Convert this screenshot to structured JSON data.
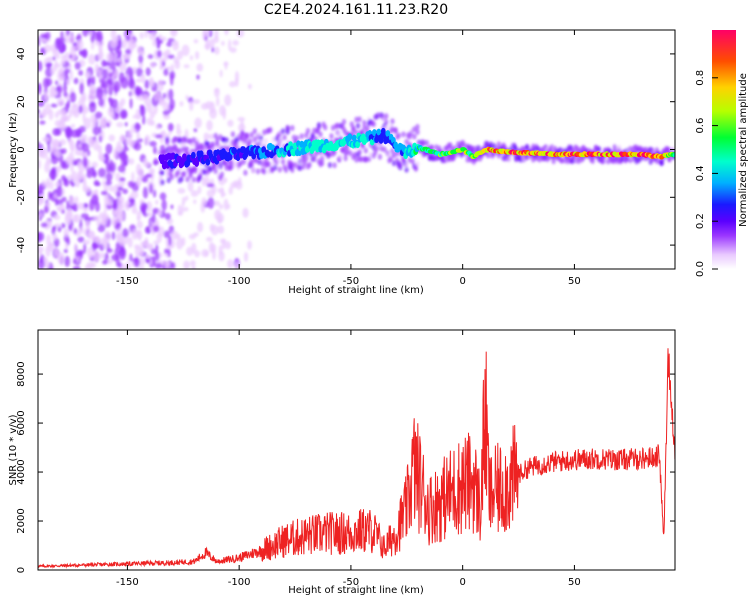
{
  "title": "C2E4.2024.161.11.23.R20",
  "colors": {
    "snr_line": "#ee2222",
    "colorbar": [
      "#ffffff",
      "#e9c9ff",
      "#9a36ff",
      "#5a00ff",
      "#1a1aff",
      "#00b0ff",
      "#00ffcc",
      "#00ff33",
      "#b6ff00",
      "#ffd200",
      "#ff4d00",
      "#ff0066"
    ]
  },
  "chart_data": [
    {
      "type": "heatmap",
      "xlabel": "Height of straight line (km)",
      "ylabel": "Frequency (Hz)",
      "xlim": [
        -190,
        95
      ],
      "ylim": [
        -50,
        50
      ],
      "xticks": [
        -150,
        -100,
        -50,
        0,
        50
      ],
      "yticks": [
        -40,
        -20,
        0,
        20,
        40
      ],
      "colorbar": {
        "label": "Normalized spectral amplitude",
        "range": [
          0,
          1
        ],
        "ticks": [
          "0.0",
          "0.2",
          "0.4",
          "0.6",
          "0.8"
        ]
      },
      "ridge": {
        "description_values_only": true,
        "x": [
          -135,
          -120,
          -100,
          -80,
          -60,
          -45,
          -35,
          -25,
          -20,
          -10,
          0,
          5,
          10,
          20,
          40,
          60,
          80,
          88,
          95
        ],
        "y": [
          -5,
          -4,
          -2,
          0,
          2,
          4,
          6,
          -2,
          1,
          -2,
          0,
          -3,
          0,
          -1,
          -2,
          -2,
          -2,
          -3,
          -2
        ],
        "amplitude": [
          0.25,
          0.3,
          0.35,
          0.45,
          0.5,
          0.5,
          0.35,
          0.45,
          0.55,
          0.6,
          0.7,
          0.65,
          0.85,
          0.9,
          0.9,
          0.9,
          0.88,
          0.9,
          0.6
        ]
      }
    },
    {
      "type": "line",
      "xlabel": "Height of straight line (km)",
      "ylabel": "SNR (10 * v/v)",
      "xlim": [
        -190,
        95
      ],
      "ylim": [
        0,
        9800
      ],
      "xticks": [
        -150,
        -100,
        -50,
        0,
        50
      ],
      "yticks": [
        0,
        2000,
        4000,
        6000,
        8000
      ],
      "series": [
        {
          "x": [
            -190,
            -170,
            -150,
            -130,
            -120,
            -115,
            -110,
            -100,
            -90,
            -80,
            -70,
            -60,
            -50,
            -45,
            -40,
            -35,
            -30,
            -25,
            -22,
            -20,
            -15,
            -10,
            -5,
            0,
            5,
            8,
            10,
            12,
            15,
            20,
            25,
            30,
            40,
            50,
            60,
            70,
            80,
            85,
            88,
            90,
            92,
            95
          ],
          "y": [
            150,
            200,
            250,
            300,
            350,
            700,
            350,
            500,
            800,
            1200,
            1400,
            1500,
            1500,
            1600,
            1600,
            900,
            1500,
            2500,
            4200,
            3800,
            2500,
            2800,
            3200,
            3500,
            3600,
            2500,
            6500,
            3000,
            3200,
            3500,
            3900,
            4200,
            4400,
            4500,
            4550,
            4500,
            4550,
            4600,
            4700,
            1200,
            8800,
            4800
          ]
        }
      ]
    }
  ]
}
